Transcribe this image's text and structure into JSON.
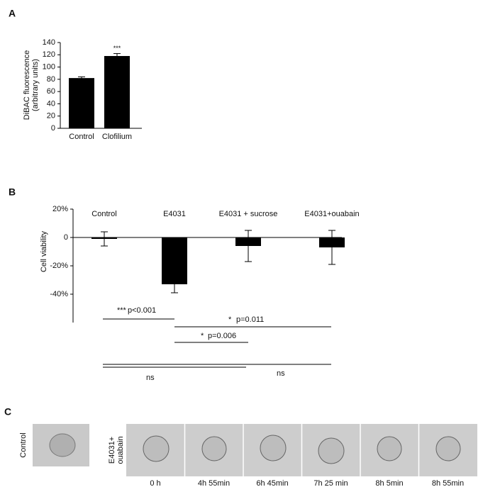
{
  "panel_labels": [
    "A",
    "B",
    "C"
  ],
  "chart_data": [
    {
      "type": "bar",
      "ylabel_lines": [
        "DiBAC fluorescence",
        "(arbitrary units)"
      ],
      "categories": [
        "Control",
        "Clofilium"
      ],
      "values": [
        82,
        118
      ],
      "errors": [
        2,
        4
      ],
      "color": "#000000",
      "ylim": [
        0,
        140
      ],
      "yticks": [
        0,
        20,
        40,
        60,
        80,
        100,
        120,
        140
      ],
      "annotations": [
        "***"
      ]
    },
    {
      "type": "bar",
      "ylabel": "Cell viability",
      "categories": [
        "Control",
        "E4031",
        "E4031 + sucrose",
        "E4031+ouabain"
      ],
      "values": [
        -1,
        -33,
        -6,
        -7
      ],
      "errors": [
        5,
        6,
        11,
        12
      ],
      "color": "#000000",
      "ylim": [
        -60,
        20
      ],
      "yticks": [
        {
          "value": 20,
          "label": "20%"
        },
        0,
        {
          "value": -20,
          "label": "-20%"
        },
        {
          "value": -40,
          "label": "-40%"
        }
      ],
      "comparisons": [
        {
          "stars": "***",
          "label": "p<0.001"
        },
        {
          "stars": "*",
          "label": "p=0.011"
        },
        {
          "stars": "*",
          "label": "p=0.006"
        },
        {
          "label": "ns"
        },
        {
          "label": "ns"
        }
      ]
    }
  ],
  "image_panel": {
    "row_labels": [
      [
        "Control"
      ],
      [
        "E4031+",
        "ouabain"
      ]
    ],
    "time_labels": [
      "0 h",
      "4h 55min",
      "6h 45min",
      "7h 25 min",
      "8h 5min",
      "8h 55min"
    ]
  }
}
